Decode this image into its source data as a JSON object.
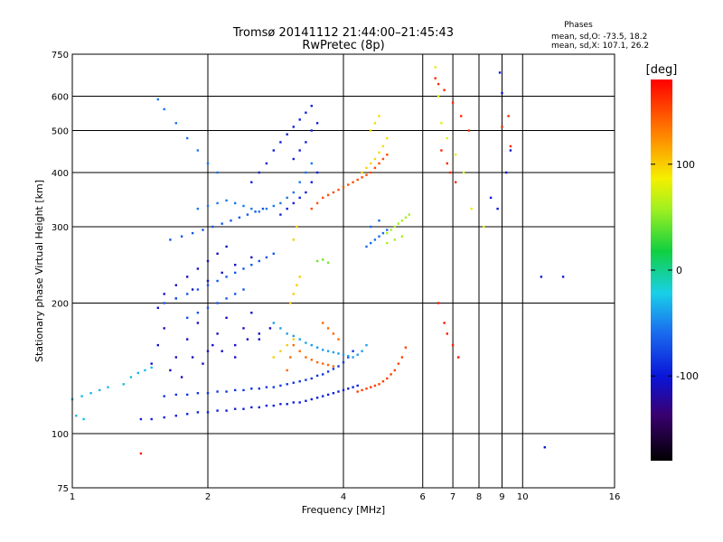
{
  "chart_data": {
    "type": "scatter",
    "title": "Tromsø 20141112 21:44:00–21:45:43",
    "subtitle": "RwPretec (8p)",
    "xlabel": "Frequency [MHz]",
    "ylabel": "Stationary phase Virtual Height [km]",
    "x_scale": "log",
    "y_scale": "log",
    "xlim": [
      1,
      16
    ],
    "ylim": [
      75,
      750
    ],
    "x_ticks": [
      1,
      2,
      4,
      6,
      8,
      10,
      16
    ],
    "x_minor_ticks": [
      7,
      9
    ],
    "y_ticks": [
      75,
      100,
      200,
      300,
      400,
      500,
      600,
      750
    ],
    "grid": true,
    "phases_legend": {
      "title": "Phases",
      "line_o": "mean, sd,O: -73.5, 18.2",
      "line_x": "mean, sd,X: 107.1, 26.2"
    },
    "colorbar": {
      "label": "[deg]",
      "range": [
        -180,
        180
      ],
      "ticks": [
        100,
        0,
        -100
      ]
    },
    "series": [
      {
        "phase": -95,
        "x": [
          1.42,
          1.5,
          1.6,
          1.7,
          1.8,
          1.9,
          2.0,
          2.1,
          2.2,
          2.3,
          2.4,
          2.5,
          2.6,
          2.7,
          2.8,
          2.9,
          3.0,
          3.1,
          3.2,
          3.3,
          3.4,
          3.5,
          3.6,
          3.7,
          3.8,
          3.9,
          4.0,
          4.1,
          4.2,
          4.3
        ],
        "y": [
          108,
          108,
          109,
          110,
          111,
          112,
          112,
          113,
          113,
          114,
          114,
          115,
          115,
          116,
          116,
          117,
          117,
          118,
          118,
          119,
          120,
          121,
          122,
          123,
          124,
          125,
          126,
          127,
          128,
          129
        ]
      },
      {
        "phase": -85,
        "x": [
          1.6,
          1.7,
          1.8,
          1.9,
          2.0,
          2.1,
          2.2,
          2.3,
          2.4,
          2.5,
          2.6,
          2.7,
          2.8,
          2.9,
          3.0,
          3.1,
          3.2,
          3.3,
          3.4,
          3.5,
          3.6,
          3.7,
          3.8,
          3.9,
          4.0,
          4.1,
          4.2
        ],
        "y": [
          122,
          123,
          123,
          124,
          124,
          125,
          125,
          126,
          126,
          127,
          127,
          128,
          128,
          129,
          130,
          131,
          132,
          133,
          134,
          136,
          137,
          139,
          141,
          143,
          146,
          150,
          155
        ]
      },
      {
        "phase": -110,
        "x": [
          1.5,
          1.55,
          1.6,
          1.7,
          1.8,
          1.9,
          2.0,
          2.1,
          2.2,
          2.3,
          2.4,
          2.5,
          2.6,
          1.6,
          1.7,
          1.8,
          1.9,
          2.0,
          2.1,
          2.2,
          1.65,
          1.75,
          1.85,
          1.95,
          2.05,
          2.15,
          2.3,
          2.45,
          2.6,
          2.75,
          1.55,
          1.7,
          1.85,
          2.0,
          2.15,
          2.3,
          2.5
        ],
        "y": [
          145,
          160,
          175,
          150,
          165,
          180,
          155,
          170,
          185,
          160,
          175,
          190,
          165,
          210,
          220,
          230,
          240,
          250,
          260,
          270,
          140,
          135,
          150,
          145,
          160,
          155,
          150,
          165,
          170,
          175,
          195,
          205,
          215,
          225,
          235,
          245,
          255
        ]
      },
      {
        "phase": -70,
        "x": [
          1.6,
          1.7,
          1.8,
          1.9,
          2.0,
          2.1,
          2.2,
          2.3,
          2.4,
          2.5,
          2.6,
          2.7,
          2.8,
          1.65,
          1.75,
          1.85,
          1.95,
          2.05,
          2.15,
          2.25,
          2.35,
          2.45,
          2.55,
          2.65,
          1.8,
          1.9,
          2.0,
          2.1,
          2.2,
          2.3,
          2.4
        ],
        "y": [
          200,
          205,
          210,
          215,
          220,
          225,
          230,
          235,
          240,
          245,
          250,
          255,
          260,
          280,
          285,
          290,
          295,
          300,
          305,
          310,
          315,
          320,
          325,
          330,
          185,
          190,
          195,
          200,
          205,
          210,
          215
        ]
      },
      {
        "phase": -55,
        "x": [
          1.55,
          1.6,
          1.7,
          1.8,
          1.9,
          2.0,
          2.1,
          1.9,
          2.0,
          2.1,
          2.2,
          2.3,
          2.4,
          2.5,
          2.6,
          2.7,
          2.8,
          2.9,
          3.0,
          3.1,
          3.2,
          3.3,
          3.4
        ],
        "y": [
          590,
          560,
          520,
          480,
          450,
          420,
          400,
          330,
          335,
          340,
          345,
          340,
          335,
          330,
          325,
          330,
          335,
          340,
          350,
          360,
          380,
          400,
          420
        ]
      },
      {
        "phase": -95,
        "x": [
          2.5,
          2.6,
          2.7,
          2.8,
          2.9,
          3.0,
          3.1,
          3.2,
          3.3,
          3.4,
          2.9,
          3.0,
          3.1,
          3.2,
          3.3,
          3.4,
          3.5,
          3.1,
          3.2,
          3.3,
          3.4,
          3.5
        ],
        "y": [
          380,
          400,
          420,
          450,
          470,
          490,
          510,
          530,
          550,
          570,
          320,
          330,
          340,
          350,
          360,
          380,
          400,
          430,
          450,
          470,
          500,
          520
        ]
      },
      {
        "phase": -40,
        "x": [
          2.8,
          2.9,
          3.0,
          3.1,
          3.2,
          3.3,
          3.4,
          3.5,
          3.6,
          3.7,
          3.8,
          3.9,
          4.0,
          4.1,
          4.2,
          4.3,
          4.4,
          4.5
        ],
        "y": [
          180,
          175,
          170,
          168,
          165,
          162,
          160,
          158,
          156,
          155,
          154,
          153,
          152,
          151,
          150,
          152,
          155,
          160
        ]
      },
      {
        "phase": 150,
        "x": [
          3.4,
          3.5,
          3.6,
          3.7,
          3.8,
          3.9,
          4.0,
          4.1,
          4.2,
          4.3,
          4.4,
          4.5,
          4.6,
          4.7,
          4.8,
          4.9,
          5.0
        ],
        "y": [
          330,
          340,
          350,
          355,
          360,
          365,
          370,
          375,
          380,
          385,
          390,
          395,
          400,
          410,
          420,
          430,
          440
        ]
      },
      {
        "phase": 95,
        "x": [
          4.4,
          4.5,
          4.6,
          4.7,
          4.8,
          4.9,
          5.0,
          4.6,
          4.7,
          4.8
        ],
        "y": [
          400,
          410,
          420,
          430,
          445,
          460,
          480,
          500,
          520,
          540
        ]
      },
      {
        "phase": 155,
        "x": [
          4.3,
          4.4,
          4.5,
          4.6,
          4.7,
          4.8,
          4.9,
          5.0,
          5.1,
          5.2,
          5.3,
          5.4,
          5.5
        ],
        "y": [
          125,
          126,
          127,
          128,
          129,
          130,
          132,
          134,
          137,
          140,
          145,
          150,
          158
        ]
      },
      {
        "phase": 140,
        "x": [
          3.0,
          3.05,
          3.1,
          3.2,
          3.3,
          3.4,
          3.5,
          3.6,
          3.7,
          3.8,
          3.6,
          3.7,
          3.8,
          3.9
        ],
        "y": [
          140,
          150,
          160,
          155,
          150,
          148,
          146,
          145,
          144,
          143,
          180,
          175,
          170,
          165
        ]
      },
      {
        "phase": 100,
        "x": [
          2.8,
          2.9,
          3.0,
          3.1,
          3.05,
          3.1,
          3.15,
          3.2,
          3.1,
          3.15
        ],
        "y": [
          150,
          155,
          160,
          165,
          200,
          210,
          220,
          230,
          280,
          300
        ]
      },
      {
        "phase": 60,
        "x": [
          5.0,
          5.1,
          5.2,
          5.3,
          5.4,
          5.5,
          5.6,
          5.0,
          5.2,
          5.4
        ],
        "y": [
          290,
          295,
          300,
          305,
          310,
          315,
          320,
          275,
          280,
          285
        ]
      },
      {
        "phase": -60,
        "x": [
          4.5,
          4.6,
          4.7,
          4.8,
          4.9,
          5.0,
          4.6,
          4.8
        ],
        "y": [
          270,
          275,
          280,
          285,
          290,
          295,
          300,
          310
        ]
      },
      {
        "phase": 45,
        "x": [
          3.5,
          3.6,
          3.7
        ],
        "y": [
          250,
          252,
          248
        ]
      },
      {
        "phase": -30,
        "x": [
          1.0,
          1.05,
          1.1,
          1.15,
          1.2,
          1.3,
          1.35,
          1.4,
          1.45,
          1.5,
          1.02,
          1.06
        ],
        "y": [
          120,
          122,
          124,
          126,
          128,
          130,
          135,
          138,
          140,
          142,
          110,
          108
        ]
      },
      {
        "phase": 165,
        "x": [
          6.4,
          6.5,
          6.7,
          7.0,
          7.3,
          7.6,
          6.6,
          6.8,
          6.9,
          7.1,
          9.3,
          9.0,
          9.4
        ],
        "y": [
          660,
          640,
          620,
          580,
          540,
          500,
          450,
          420,
          400,
          380,
          540,
          510,
          460
        ]
      },
      {
        "phase": 80,
        "x": [
          6.4,
          6.5,
          6.6,
          6.8,
          7.1,
          7.4,
          7.7,
          8.2
        ],
        "y": [
          700,
          600,
          520,
          480,
          440,
          400,
          330,
          300
        ]
      },
      {
        "phase": -100,
        "x": [
          8.9,
          9.0,
          9.2,
          9.4,
          8.5,
          8.8,
          11.0,
          12.3,
          11.2
        ],
        "y": [
          680,
          610,
          400,
          450,
          350,
          330,
          230,
          230,
          93
        ]
      },
      {
        "phase": 170,
        "x": [
          1.42,
          6.5,
          6.7,
          6.8,
          7.0,
          7.2
        ],
        "y": [
          90,
          200,
          180,
          170,
          160,
          150
        ]
      }
    ]
  }
}
